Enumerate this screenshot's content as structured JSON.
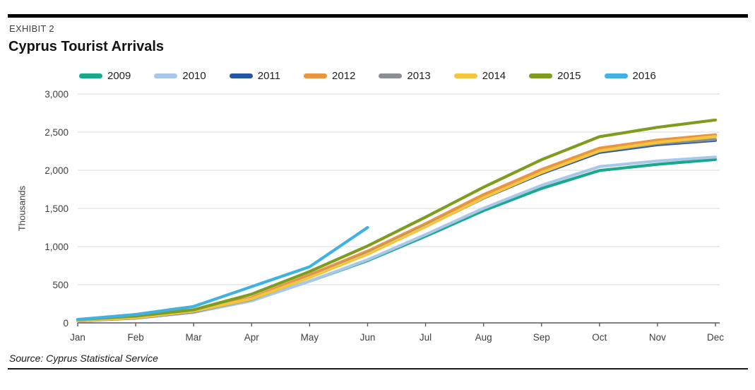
{
  "header": {
    "exhibit": "EXHIBIT 2",
    "title": "Cyprus Tourist Arrivals"
  },
  "chart_data": {
    "type": "line",
    "title": "Cyprus Tourist Arrivals",
    "ylabel": "Thousands",
    "xlabel": "",
    "categories": [
      "Jan",
      "Feb",
      "Mar",
      "Apr",
      "May",
      "Jun",
      "Jul",
      "Aug",
      "Sep",
      "Oct",
      "Nov",
      "Dec"
    ],
    "y_ticks": [
      0,
      500,
      1000,
      1500,
      2000,
      2500,
      3000
    ],
    "ylim": [
      0,
      3000
    ],
    "grid": "horizontal",
    "legend_position": "top",
    "series": [
      {
        "name": "2009",
        "color": "#18A88B",
        "values": [
          30,
          68,
          141,
          292,
          546,
          816,
          1136,
          1472,
          1762,
          1997,
          2078,
          2141
        ]
      },
      {
        "name": "2010",
        "color": "#A9C7E9",
        "values": [
          26,
          61,
          137,
          289,
          546,
          827,
          1157,
          1502,
          1802,
          2048,
          2122,
          2173
        ]
      },
      {
        "name": "2011",
        "color": "#2356A5",
        "values": [
          27,
          64,
          148,
          317,
          607,
          908,
          1263,
          1636,
          1957,
          2235,
          2335,
          2392
        ]
      },
      {
        "name": "2012",
        "color": "#EA9440",
        "values": [
          30,
          70,
          160,
          330,
          630,
          940,
          1300,
          1680,
          2010,
          2290,
          2395,
          2465
        ]
      },
      {
        "name": "2013",
        "color": "#8B8F93",
        "values": [
          28,
          65,
          150,
          310,
          600,
          910,
          1270,
          1640,
          1970,
          2250,
          2350,
          2405
        ]
      },
      {
        "name": "2014",
        "color": "#F4C63F",
        "values": [
          30,
          68,
          155,
          315,
          595,
          900,
          1260,
          1640,
          1970,
          2255,
          2365,
          2441
        ]
      },
      {
        "name": "2015",
        "color": "#7E9C1E",
        "values": [
          43,
          89,
          172,
          376,
          673,
          1008,
          1386,
          1778,
          2138,
          2440,
          2563,
          2659
        ]
      },
      {
        "name": "2016",
        "color": "#41B1E1",
        "values": [
          45,
          110,
          215,
          475,
          735,
          1250
        ]
      }
    ]
  },
  "footer": {
    "source": "Source: Cyprus Statistical Service"
  },
  "colors": {
    "grid": "#D9D9D9",
    "axis": "#595959",
    "tick_text": "#404040",
    "top_rule": "#000000"
  }
}
